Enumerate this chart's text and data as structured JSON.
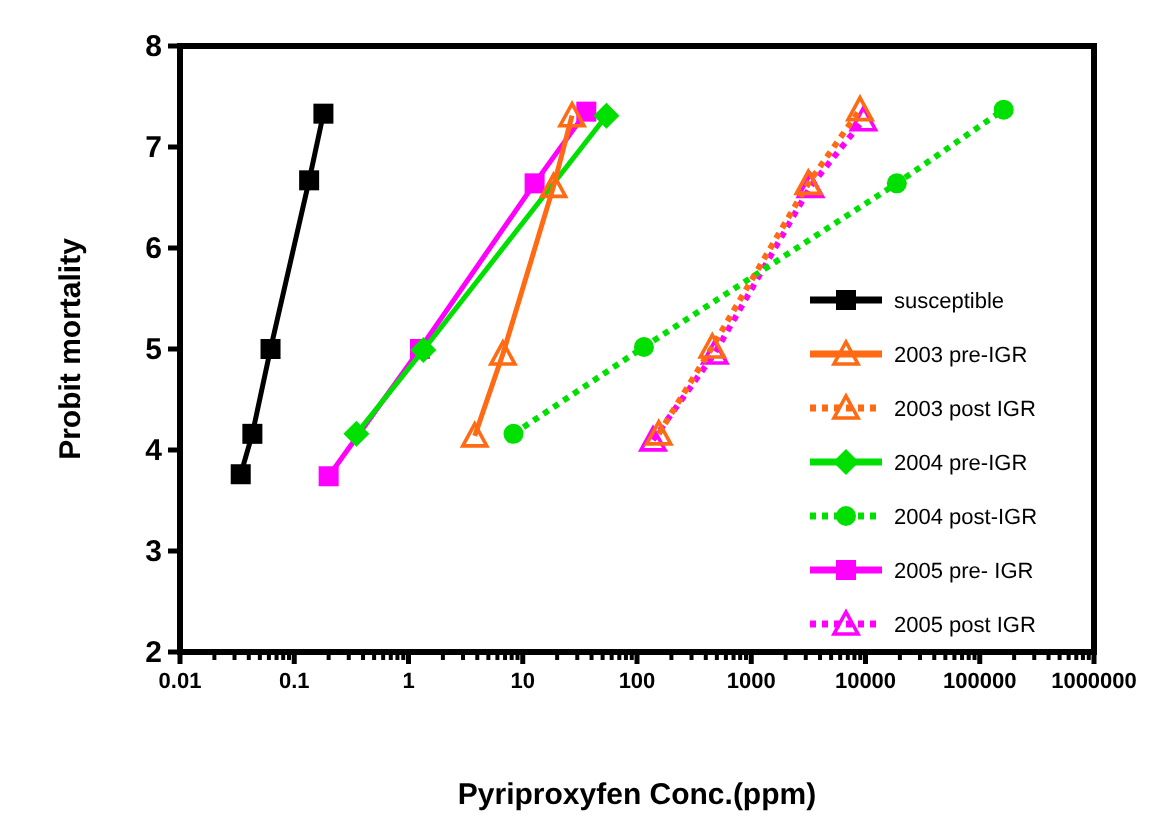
{
  "chart_data": {
    "type": "line",
    "xlabel": "Pyriproxyfen Conc.(ppm)",
    "ylabel": "Probit mortality",
    "log": "x",
    "legend": "right",
    "grid": false,
    "xlim": [
      0.01,
      1000000
    ],
    "ylim": [
      2,
      8
    ],
    "xticks": [
      0.01,
      {
        "value": 0.02,
        "label": null
      },
      {
        "value": 0.03,
        "label": null
      },
      {
        "value": 0.04,
        "label": null
      },
      {
        "value": 0.05,
        "label": null
      },
      {
        "value": 0.06,
        "label": null
      },
      {
        "value": 0.07,
        "label": null
      },
      {
        "value": 0.08,
        "label": null
      },
      {
        "value": 0.09,
        "label": null
      },
      0.1,
      {
        "value": 0.2,
        "label": null
      },
      {
        "value": 0.3,
        "label": null
      },
      {
        "value": 0.4,
        "label": null
      },
      {
        "value": 0.5,
        "label": null
      },
      {
        "value": 0.6,
        "label": null
      },
      {
        "value": 0.7,
        "label": null
      },
      {
        "value": 0.8,
        "label": null
      },
      {
        "value": 0.9,
        "label": null
      },
      1,
      {
        "value": 2,
        "label": null
      },
      {
        "value": 3,
        "label": null
      },
      {
        "value": 4,
        "label": null
      },
      {
        "value": 5,
        "label": null
      },
      {
        "value": 6,
        "label": null
      },
      {
        "value": 7,
        "label": null
      },
      {
        "value": 8,
        "label": null
      },
      {
        "value": 9,
        "label": null
      },
      10,
      {
        "value": 20,
        "label": null
      },
      {
        "value": 30,
        "label": null
      },
      {
        "value": 40,
        "label": null
      },
      {
        "value": 50,
        "label": null
      },
      {
        "value": 60,
        "label": null
      },
      {
        "value": 70,
        "label": null
      },
      {
        "value": 80,
        "label": null
      },
      {
        "value": 90,
        "label": null
      },
      100,
      {
        "value": 200,
        "label": null
      },
      {
        "value": 300,
        "label": null
      },
      {
        "value": 400,
        "label": null
      },
      {
        "value": 500,
        "label": null
      },
      {
        "value": 600,
        "label": null
      },
      {
        "value": 700,
        "label": null
      },
      {
        "value": 800,
        "label": null
      },
      {
        "value": 900,
        "label": null
      },
      1000,
      {
        "value": 2000,
        "label": null
      },
      {
        "value": 3000,
        "label": null
      },
      {
        "value": 4000,
        "label": null
      },
      {
        "value": 5000,
        "label": null
      },
      {
        "value": 6000,
        "label": null
      },
      {
        "value": 7000,
        "label": null
      },
      {
        "value": 8000,
        "label": null
      },
      {
        "value": 9000,
        "label": null
      },
      10000,
      {
        "value": 20000,
        "label": null
      },
      {
        "value": 30000,
        "label": null
      },
      {
        "value": 40000,
        "label": null
      },
      {
        "value": 50000,
        "label": null
      },
      {
        "value": 60000,
        "label": null
      },
      {
        "value": 70000,
        "label": null
      },
      {
        "value": 80000,
        "label": null
      },
      {
        "value": 90000,
        "label": null
      },
      100000,
      {
        "value": 200000,
        "label": null
      },
      {
        "value": 300000,
        "label": null
      },
      {
        "value": 400000,
        "label": null
      },
      {
        "value": 500000,
        "label": null
      },
      {
        "value": 600000,
        "label": null
      },
      {
        "value": 700000,
        "label": null
      },
      {
        "value": 800000,
        "label": null
      },
      {
        "value": 900000,
        "label": null
      },
      1000000
    ],
    "yticks": [
      2,
      3,
      4,
      5,
      6,
      7,
      8
    ],
    "series": [
      {
        "name": "susceptible",
        "color": "#000000",
        "marker": "square",
        "line_style": "solid",
        "x": [
          0.034,
          0.043,
          0.062,
          0.135,
          0.18
        ],
        "values": [
          3.76,
          4.16,
          5.0,
          6.67,
          7.33
        ]
      },
      {
        "name": "2003 pre-IGR",
        "color": "#ff6a13",
        "marker": "triangle",
        "line_style": "solid",
        "x": [
          3.8,
          6.7,
          18.6,
          27
        ],
        "values": [
          4.14,
          4.95,
          6.61,
          7.31
        ]
      },
      {
        "name": "2003 post IGR",
        "color": "#ff6a13",
        "marker": "triangle",
        "line_style": "dotted",
        "x": [
          155,
          456,
          3160,
          8950
        ],
        "values": [
          4.16,
          5.02,
          6.64,
          7.37
        ]
      },
      {
        "name": "2004 pre-IGR",
        "color": "#00e000",
        "marker": "diamond",
        "line_style": "solid",
        "x": [
          0.35,
          1.35,
          54
        ],
        "values": [
          4.16,
          4.99,
          7.31
        ]
      },
      {
        "name": "2004 post-IGR",
        "color": "#00e000",
        "marker": "circle",
        "line_style": "dotted",
        "x": [
          8.3,
          115,
          18800,
          162000
        ],
        "values": [
          4.16,
          5.02,
          6.64,
          7.37
        ]
      },
      {
        "name": "2005 pre- IGR",
        "color": "#ff00ff",
        "marker": "square",
        "line_style": "solid",
        "x": [
          0.2,
          1.26,
          12.7,
          36
        ],
        "values": [
          3.74,
          5.0,
          6.64,
          7.35
        ]
      },
      {
        "name": "2005 post IGR",
        "color": "#ff00ff",
        "marker": "triangle",
        "line_style": "dotted",
        "x": [
          138,
          480,
          3300,
          9600
        ],
        "values": [
          4.1,
          4.96,
          6.61,
          7.27
        ]
      }
    ]
  }
}
